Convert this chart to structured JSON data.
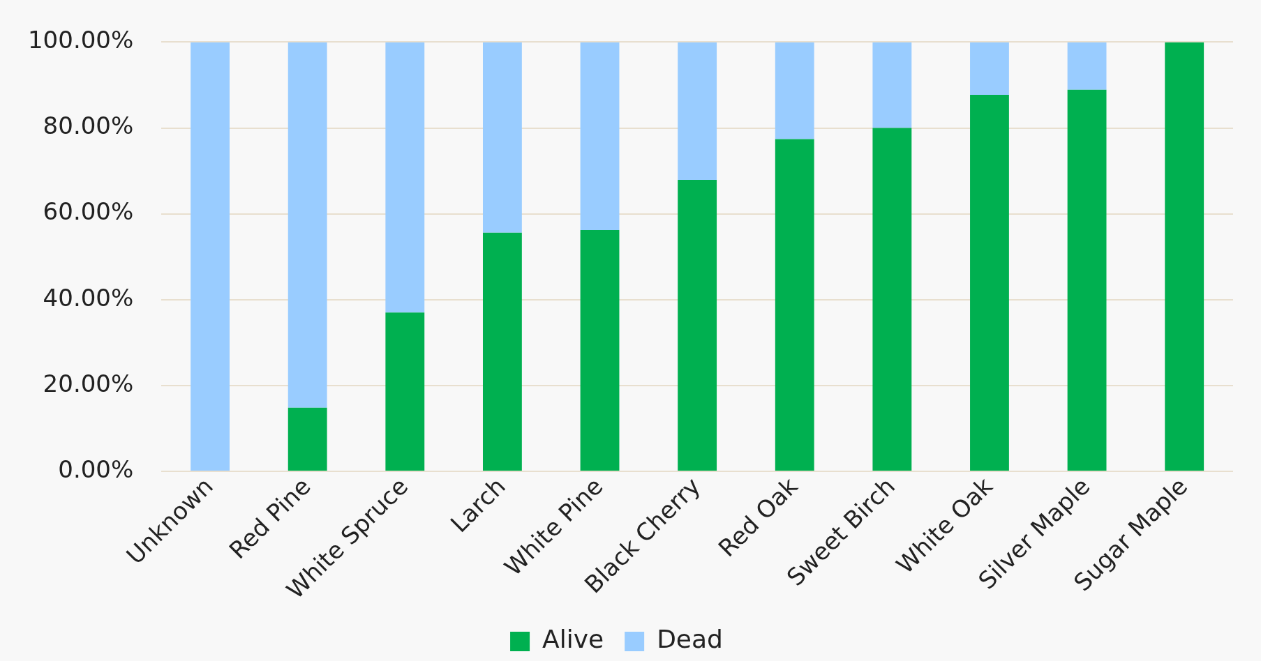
{
  "chart_data": {
    "type": "bar",
    "stacked": true,
    "categories": [
      "Unknown",
      "Red Pine",
      "White Spruce",
      "Larch",
      "White Pine",
      "Black Cherry",
      "Red Oak",
      "Sweet Birch",
      "White Oak",
      "Silver Maple",
      "Sugar Maple"
    ],
    "series": [
      {
        "name": "Alive",
        "color": "#00b050",
        "values": [
          0,
          14.8,
          37.0,
          55.6,
          56.2,
          67.9,
          77.4,
          80.0,
          87.7,
          88.9,
          100
        ]
      },
      {
        "name": "Dead",
        "color": "#99ccff",
        "values": [
          100,
          85.2,
          63.0,
          44.4,
          43.8,
          32.1,
          22.6,
          20.0,
          12.3,
          11.1,
          0
        ]
      }
    ],
    "ylim": [
      0,
      100
    ],
    "yticks": [
      {
        "value": 0,
        "label": "0.00%"
      },
      {
        "value": 20,
        "label": "20.00%"
      },
      {
        "value": 40,
        "label": "40.00%"
      },
      {
        "value": 60,
        "label": "60.00%"
      },
      {
        "value": 80,
        "label": "80.00%"
      },
      {
        "value": 100,
        "label": "100.00%"
      }
    ],
    "grid": "y",
    "legend": "bottom"
  }
}
